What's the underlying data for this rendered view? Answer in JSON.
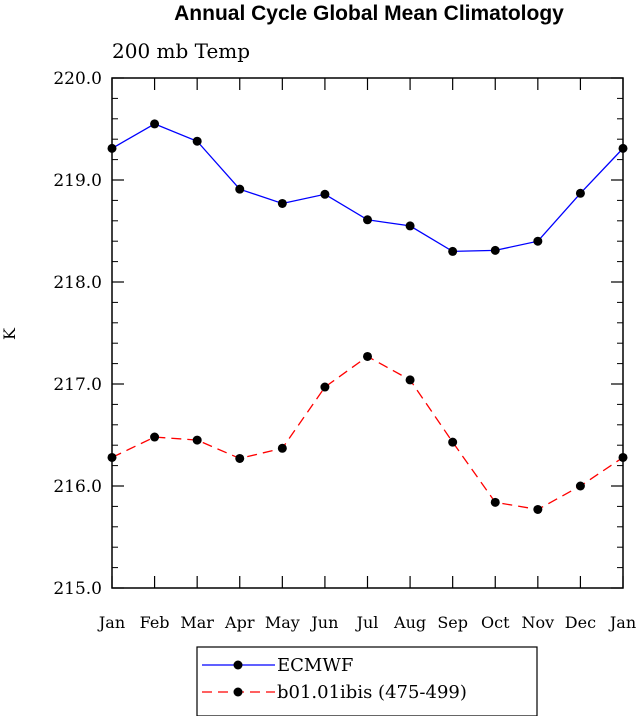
{
  "chart_data": {
    "type": "line",
    "title": "Annual Cycle Global Mean Climatology",
    "subtitle": "200 mb Temp",
    "xlabel": "",
    "ylabel": "K",
    "categories": [
      "Jan",
      "Feb",
      "Mar",
      "Apr",
      "May",
      "Jun",
      "Jul",
      "Aug",
      "Sep",
      "Oct",
      "Nov",
      "Dec",
      "Jan"
    ],
    "ylim": [
      215.0,
      220.0
    ],
    "yticks": [
      "215.0",
      "216.0",
      "217.0",
      "218.0",
      "219.0",
      "220.0"
    ],
    "grid": false,
    "legend_position": "bottom",
    "series": [
      {
        "name": "ECMWF",
        "color": "#0000ff",
        "dash": "solid",
        "values": [
          219.31,
          219.55,
          219.38,
          218.91,
          218.77,
          218.86,
          218.61,
          218.55,
          218.3,
          218.31,
          218.4,
          218.87,
          219.31
        ]
      },
      {
        "name": "b01.01ibis (475-499)",
        "color": "#ff0000",
        "dash": "dashed",
        "values": [
          216.28,
          216.48,
          216.45,
          216.27,
          216.37,
          216.97,
          217.27,
          217.04,
          216.43,
          215.84,
          215.77,
          216.0,
          216.28
        ]
      }
    ]
  }
}
